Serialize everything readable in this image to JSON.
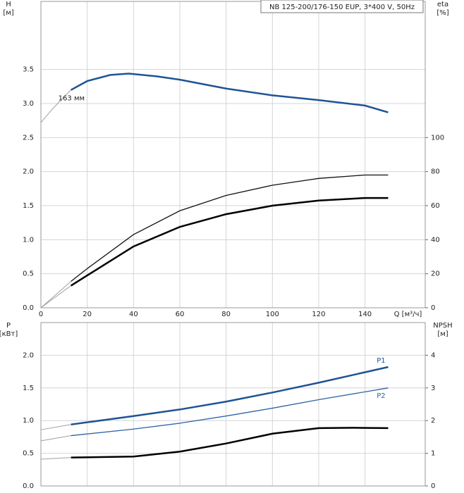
{
  "chart_data": [
    {
      "type": "line",
      "title": "NB 125-200/176-150 EUP, 3*400 V, 50Hz",
      "ylabel": "H",
      "yunit": "[м]",
      "y2label": "eta",
      "y2unit": "[%]",
      "xlabel": "Q [м³/ч]",
      "xlim": [
        0,
        166
      ],
      "xticks": [
        0,
        20,
        40,
        60,
        80,
        100,
        120,
        140
      ],
      "ylim": [
        0,
        4.5
      ],
      "yticks": [
        {
          "value": 0,
          "label": "0.0"
        },
        0.5,
        {
          "value": 1,
          "label": "1.0"
        },
        1.5,
        {
          "value": 2,
          "label": "2.0"
        },
        2.5,
        {
          "value": 3,
          "label": "3.0"
        },
        3.5
      ],
      "y2lim": [
        0,
        180
      ],
      "y2ticks": [
        0,
        20,
        40,
        60,
        80,
        100
      ],
      "grid": true,
      "annotation": "163 мм",
      "series": [
        {
          "color": "#a0a0a0",
          "width": 1,
          "x": [
            0,
            5,
            10,
            13
          ],
          "values": [
            2.72,
            2.92,
            3.1,
            3.2
          ]
        },
        {
          "color": "#1f5494",
          "width": 2.5,
          "x": [
            13,
            20,
            30,
            38,
            50,
            60,
            80,
            100,
            120,
            140,
            150
          ],
          "values": [
            3.2,
            3.33,
            3.42,
            3.44,
            3.4,
            3.35,
            3.22,
            3.12,
            3.05,
            2.97,
            2.87
          ]
        },
        {
          "color": "#a0a0a0",
          "width": 1,
          "axis": "y2",
          "x": [
            0,
            13
          ],
          "values": [
            0,
            15.5
          ]
        },
        {
          "color": "#111111",
          "width": 1.3,
          "axis": "y2",
          "x": [
            13,
            20,
            40,
            60,
            80,
            100,
            120,
            140,
            150
          ],
          "values": [
            15.5,
            23,
            43,
            57,
            66,
            72,
            76,
            78,
            78
          ]
        },
        {
          "color": "#a0a0a0",
          "width": 1,
          "axis": "y2",
          "x": [
            0,
            13
          ],
          "values": [
            0,
            13
          ]
        },
        {
          "color": "#000000",
          "width": 2.5,
          "axis": "y2",
          "x": [
            13,
            20,
            40,
            60,
            80,
            100,
            120,
            140,
            150
          ],
          "values": [
            13,
            19,
            36,
            47.5,
            55,
            60,
            63,
            64.5,
            64.5
          ]
        }
      ]
    },
    {
      "type": "line",
      "ylabel": "P",
      "yunit": "[кВт]",
      "y2label": "NPSH",
      "y2unit": "[м]",
      "xlim": [
        0,
        166
      ],
      "xticks": [
        0,
        20,
        40,
        60,
        80,
        100,
        120,
        140
      ],
      "ylim": [
        0,
        2.5
      ],
      "yticks": [
        {
          "value": 0,
          "label": "0.0"
        },
        0.5,
        {
          "value": 1,
          "label": "1.0"
        },
        1.5,
        {
          "value": 2,
          "label": "2.0"
        }
      ],
      "y2lim": [
        0,
        5
      ],
      "y2ticks": [
        0,
        1,
        2,
        3,
        4
      ],
      "grid": true,
      "series": [
        {
          "color": "#a0a0a0",
          "width": 1,
          "x": [
            0,
            13
          ],
          "values": [
            0.86,
            0.94
          ]
        },
        {
          "name": "P1",
          "color": "#1f5494",
          "width": 2.5,
          "x": [
            13,
            40,
            60,
            80,
            100,
            120,
            150
          ],
          "values": [
            0.94,
            1.07,
            1.17,
            1.29,
            1.43,
            1.58,
            1.82
          ]
        },
        {
          "color": "#a0a0a0",
          "width": 1,
          "x": [
            0,
            13
          ],
          "values": [
            0.69,
            0.77
          ]
        },
        {
          "name": "P2",
          "color": "#2d64a6",
          "width": 1.3,
          "x": [
            13,
            40,
            60,
            80,
            100,
            120,
            150
          ],
          "values": [
            0.77,
            0.87,
            0.96,
            1.07,
            1.19,
            1.32,
            1.5
          ]
        },
        {
          "color": "#a0a0a0",
          "width": 1,
          "axis": "y2",
          "x": [
            0,
            13
          ],
          "values": [
            0.82,
            0.87
          ]
        },
        {
          "color": "#000000",
          "width": 2.5,
          "axis": "y2",
          "x": [
            13,
            40,
            60,
            80,
            100,
            120,
            135,
            150
          ],
          "values": [
            0.87,
            0.9,
            1.05,
            1.3,
            1.6,
            1.77,
            1.78,
            1.77
          ]
        }
      ]
    }
  ]
}
